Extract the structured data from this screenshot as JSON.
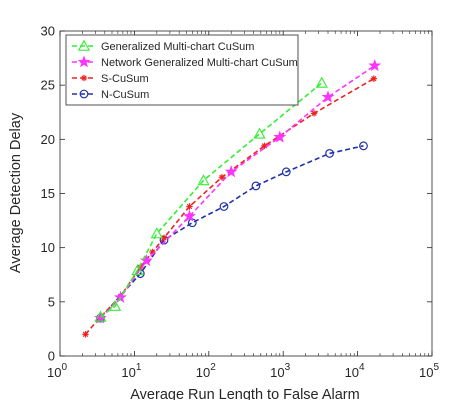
{
  "chart_data": {
    "type": "line",
    "title": "",
    "xlabel": "Average Run Length to False Alarm",
    "ylabel": "Average Detection Delay",
    "xscale": "log",
    "xlim": [
      1,
      100000
    ],
    "ylim": [
      0,
      30
    ],
    "grid": false,
    "legend_position": "top-left",
    "x_ticks": [
      {
        "value": 1,
        "base": "10",
        "exp": "0"
      },
      {
        "value": 10,
        "base": "10",
        "exp": "1"
      },
      {
        "value": 100,
        "base": "10",
        "exp": "2"
      },
      {
        "value": 1000,
        "base": "10",
        "exp": "3"
      },
      {
        "value": 10000,
        "base": "10",
        "exp": "4"
      },
      {
        "value": 100000,
        "base": "10",
        "exp": "5"
      }
    ],
    "y_ticks": [
      {
        "value": 0,
        "label": "0"
      },
      {
        "value": 5,
        "label": "5"
      },
      {
        "value": 10,
        "label": "10"
      },
      {
        "value": 15,
        "label": "15"
      },
      {
        "value": 20,
        "label": "20"
      },
      {
        "value": 25,
        "label": "25"
      },
      {
        "value": 30,
        "label": "30"
      }
    ],
    "series": [
      {
        "name": "Generalized Multi-chart CuSum",
        "color": "#33ee33",
        "marker": "triangle",
        "x": [
          3.5,
          5.5,
          11,
          20,
          85,
          480,
          3300
        ],
        "y": [
          3.6,
          4.6,
          7.9,
          11.3,
          16.2,
          20.5,
          25.2
        ]
      },
      {
        "name": "Network Generalized Multi-chart CuSum",
        "color": "#ff33ff",
        "marker": "star",
        "x": [
          3.5,
          6.5,
          14.5,
          55,
          200,
          900,
          4000,
          17000
        ],
        "y": [
          3.5,
          5.4,
          8.8,
          12.9,
          17.0,
          20.2,
          23.9,
          26.8
        ]
      },
      {
        "name": "S-CuSum",
        "color": "#ee2222",
        "marker": "asterisk",
        "x": [
          2.2,
          3.5,
          6.5,
          12,
          17.5,
          25,
          55,
          150,
          560,
          2600,
          16500
        ],
        "y": [
          2.0,
          3.6,
          5.5,
          8.2,
          9.6,
          10.9,
          13.8,
          16.5,
          19.4,
          22.4,
          25.6
        ]
      },
      {
        "name": "N-CuSum",
        "color": "#2233aa",
        "marker": "circle",
        "x": [
          3.5,
          12,
          25,
          60,
          160,
          430,
          1100,
          4200,
          12000
        ],
        "y": [
          3.5,
          7.6,
          10.7,
          12.3,
          13.8,
          15.7,
          17.0,
          18.7,
          19.4
        ]
      }
    ]
  }
}
